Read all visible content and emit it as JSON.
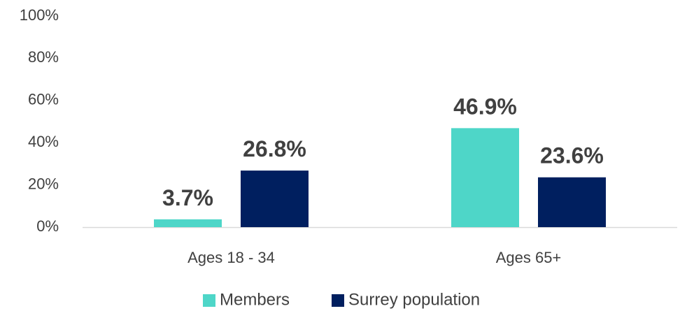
{
  "chart_data": {
    "type": "bar",
    "categories": [
      "Ages 18 - 34",
      "Ages 65+"
    ],
    "series": [
      {
        "name": "Members",
        "values": [
          3.7,
          46.9
        ],
        "labels": [
          "3.7%",
          "46.9%"
        ],
        "color": "#4ED6C8"
      },
      {
        "name": "Surrey population",
        "values": [
          26.8,
          23.6
        ],
        "labels": [
          "26.8%",
          "23.6%"
        ],
        "color": "#001F5F"
      }
    ],
    "ylim": [
      0,
      100
    ],
    "yticks": [
      "0%",
      "20%",
      "40%",
      "60%",
      "80%",
      "100%"
    ],
    "grid": false,
    "legend": "bottom",
    "axis_color": "#D9D9D9",
    "text_color": "#404040"
  }
}
